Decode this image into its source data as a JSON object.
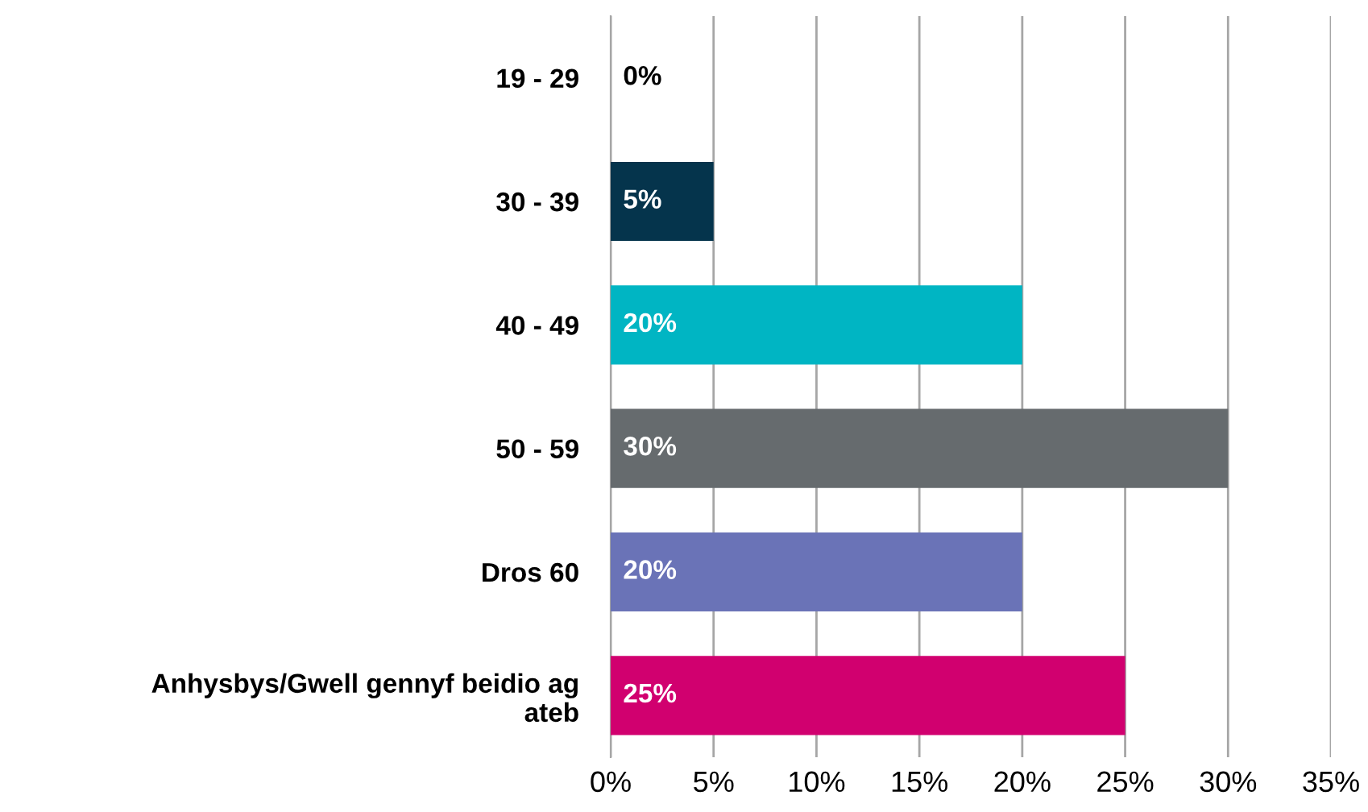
{
  "chart_data": {
    "type": "bar",
    "orientation": "horizontal",
    "categories": [
      "19 - 29",
      "30 - 39",
      "40 - 49",
      "50 - 59",
      "Dros 60",
      "Anhysbys/Gwell gennyf beidio ag\nateb"
    ],
    "values": [
      0,
      5,
      20,
      30,
      20,
      25
    ],
    "colors": [
      "#05344c",
      "#05344c",
      "#00b5c3",
      "#666b6e",
      "#6a73b7",
      "#d1006f"
    ],
    "value_labels": [
      "0%",
      "5%",
      "20%",
      "30%",
      "20%",
      "25%"
    ],
    "xlim": [
      0,
      35
    ],
    "xticks": [
      {
        "value": 0,
        "label": "0%"
      },
      {
        "value": 5,
        "label": "5%"
      },
      {
        "value": 10,
        "label": "10%"
      },
      {
        "value": 15,
        "label": "15%"
      },
      {
        "value": 20,
        "label": "20%"
      },
      {
        "value": 25,
        "label": "25%"
      },
      {
        "value": 30,
        "label": "30%"
      },
      {
        "value": 35,
        "label": "35%"
      }
    ],
    "grid": "x",
    "legend": false
  }
}
